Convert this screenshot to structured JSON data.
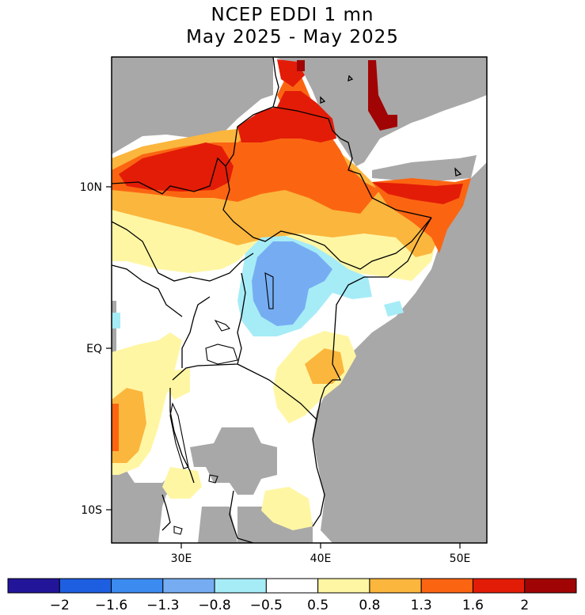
{
  "title": "NCEP EDDI 1 mn",
  "subtitle": "May 2025 - May 2025",
  "map": {
    "lon_labels": [
      "30E",
      "40E",
      "50E"
    ],
    "lat_labels": [
      "10N",
      "EQ",
      "10S"
    ],
    "masked_color": "#a8a8a8",
    "coast_color": "#000000"
  },
  "colorbar": {
    "colors": [
      "#23159a",
      "#1e5ee0",
      "#3c8bf0",
      "#76adf2",
      "#a6ecf7",
      "#ffffff",
      "#fff6a4",
      "#fbb63d",
      "#fb6512",
      "#e31c07",
      "#a10404"
    ],
    "labels": [
      "-2",
      "-1.6",
      "-1.3",
      "-0.8",
      "-0.5",
      "0.5",
      "0.8",
      "1.3",
      "1.6",
      "2"
    ]
  }
}
